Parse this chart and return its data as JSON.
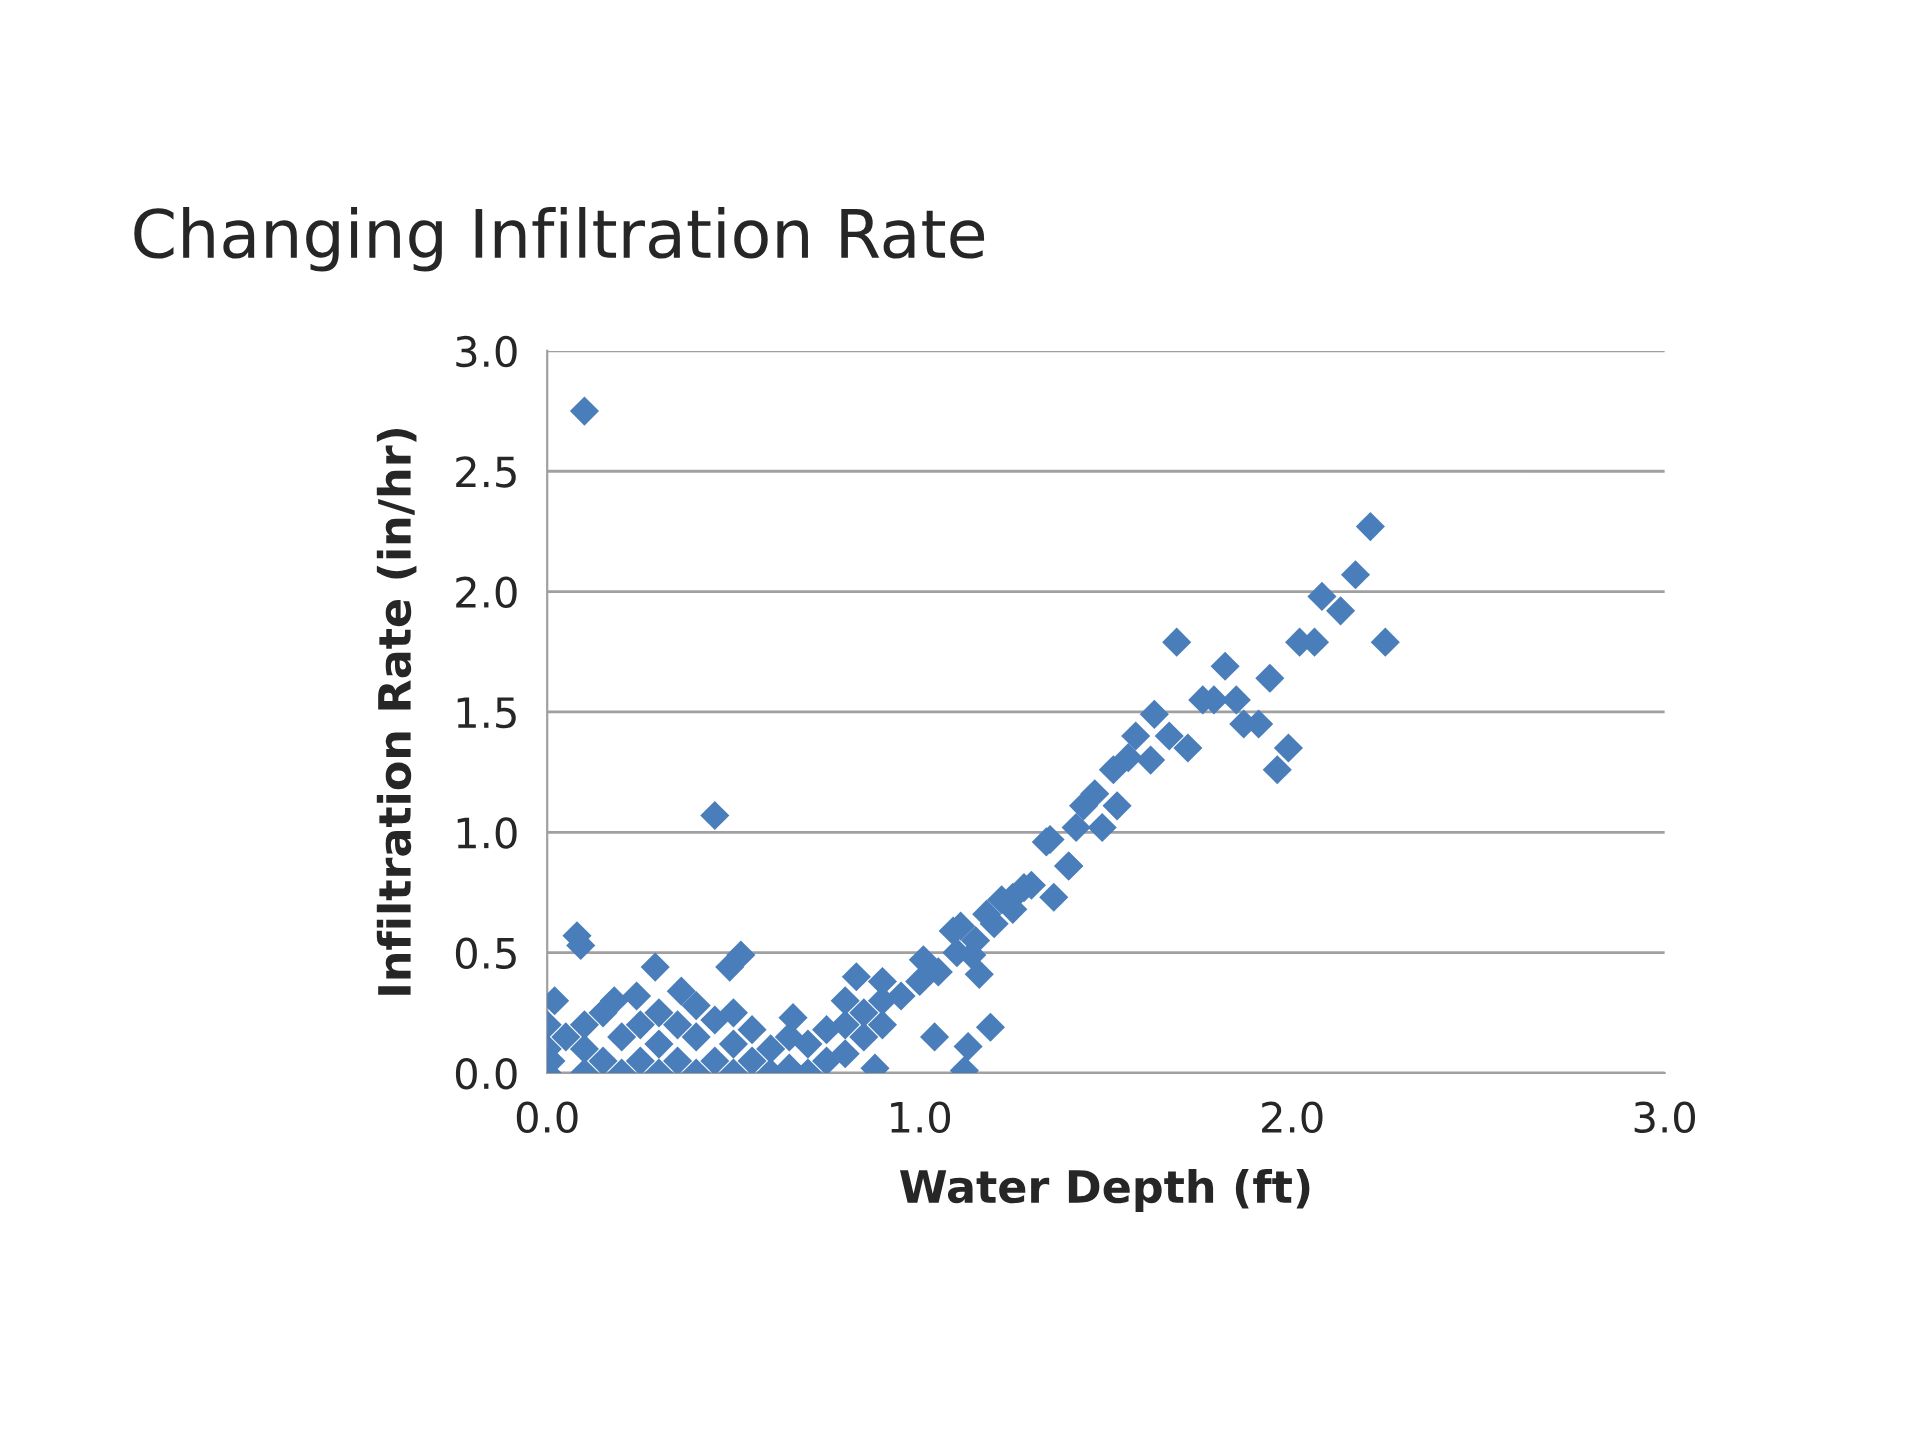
{
  "chart_data": {
    "type": "scatter",
    "title": "Changing Infiltration Rate",
    "xlabel": "Water Depth (ft)",
    "ylabel": "Infiltration Rate (in/hr)",
    "x": [
      0.1,
      0.45,
      0.08,
      0.09,
      0.29,
      0.52,
      0.49,
      0.18,
      0.36,
      0.24,
      0.83,
      1.04,
      1.19,
      1.13,
      1.12,
      0.88,
      0.0,
      0.0,
      0.0,
      0.02,
      0.01,
      0.05,
      0.1,
      0.1,
      0.1,
      0.15,
      0.15,
      0.2,
      0.2,
      0.25,
      0.25,
      0.3,
      0.3,
      0.3,
      0.35,
      0.35,
      0.4,
      0.4,
      0.4,
      0.45,
      0.45,
      0.5,
      0.5,
      0.5,
      0.55,
      0.55,
      0.6,
      0.6,
      0.65,
      0.65,
      0.7,
      0.7,
      0.75,
      0.75,
      0.8,
      0.8,
      0.85,
      0.85,
      0.9,
      0.9,
      0.95,
      1.0,
      1.05,
      1.1,
      1.15,
      1.2,
      1.25,
      0.66,
      0.8,
      0.9,
      1.01,
      1.09,
      1.14,
      1.16,
      1.22,
      1.28,
      1.35,
      1.4,
      1.11,
      1.18,
      1.25,
      1.3,
      1.36,
      1.4,
      1.34,
      1.42,
      1.49,
      1.44,
      1.53,
      1.47,
      1.52,
      1.62,
      1.56,
      1.72,
      1.67,
      1.58,
      1.63,
      1.69,
      1.82,
      1.94,
      1.76,
      1.79,
      1.85,
      1.87,
      1.91,
      1.99,
      1.96,
      2.02,
      2.06,
      2.25,
      2.13,
      2.08,
      2.17,
      2.21
    ],
    "values": [
      2.75,
      1.07,
      0.57,
      0.53,
      0.44,
      0.49,
      0.44,
      0.3,
      0.34,
      0.32,
      0.4,
      0.15,
      0.19,
      0.11,
      0.01,
      0.02,
      0.0,
      0.1,
      0.2,
      0.3,
      0.05,
      0.15,
      0.0,
      0.1,
      0.2,
      0.05,
      0.25,
      0.0,
      0.15,
      0.05,
      0.2,
      0.0,
      0.12,
      0.25,
      0.05,
      0.2,
      0.0,
      0.15,
      0.28,
      0.05,
      0.22,
      0.0,
      0.12,
      0.25,
      0.05,
      0.18,
      0.0,
      0.1,
      0.02,
      0.15,
      0.0,
      0.12,
      0.05,
      0.18,
      0.08,
      0.2,
      0.15,
      0.25,
      0.2,
      0.3,
      0.32,
      0.38,
      0.42,
      0.5,
      0.55,
      0.62,
      0.68,
      0.23,
      0.3,
      0.38,
      0.47,
      0.59,
      0.49,
      0.41,
      0.72,
      0.77,
      0.97,
      0.86,
      0.61,
      0.66,
      0.73,
      0.78,
      0.73,
      0.86,
      0.96,
      1.02,
      1.02,
      1.11,
      1.11,
      1.16,
      1.26,
      1.3,
      1.31,
      1.35,
      1.4,
      1.4,
      1.49,
      1.79,
      1.69,
      1.64,
      1.55,
      1.55,
      1.55,
      1.45,
      1.45,
      1.35,
      1.26,
      1.79,
      1.79,
      1.79,
      1.92,
      1.98,
      2.07,
      2.27
    ],
    "color": "#4a7ebb",
    "marker": "diamond",
    "xlim": [
      0,
      3
    ],
    "ylim": [
      0,
      3
    ],
    "xticks": [
      {
        "value": 0,
        "label": "0.0"
      },
      {
        "value": 1,
        "label": "1.0"
      },
      {
        "value": 2,
        "label": "2.0"
      },
      {
        "value": 3,
        "label": "3.0"
      }
    ],
    "yticks": [
      {
        "value": 0,
        "label": "0.0"
      },
      {
        "value": 0.5,
        "label": "0.5"
      },
      {
        "value": 1,
        "label": "1.0"
      },
      {
        "value": 1.5,
        "label": "1.5"
      },
      {
        "value": 2,
        "label": "2.0"
      },
      {
        "value": 2.5,
        "label": "2.5"
      },
      {
        "value": 3,
        "label": "3.0"
      }
    ],
    "grid": "y"
  }
}
